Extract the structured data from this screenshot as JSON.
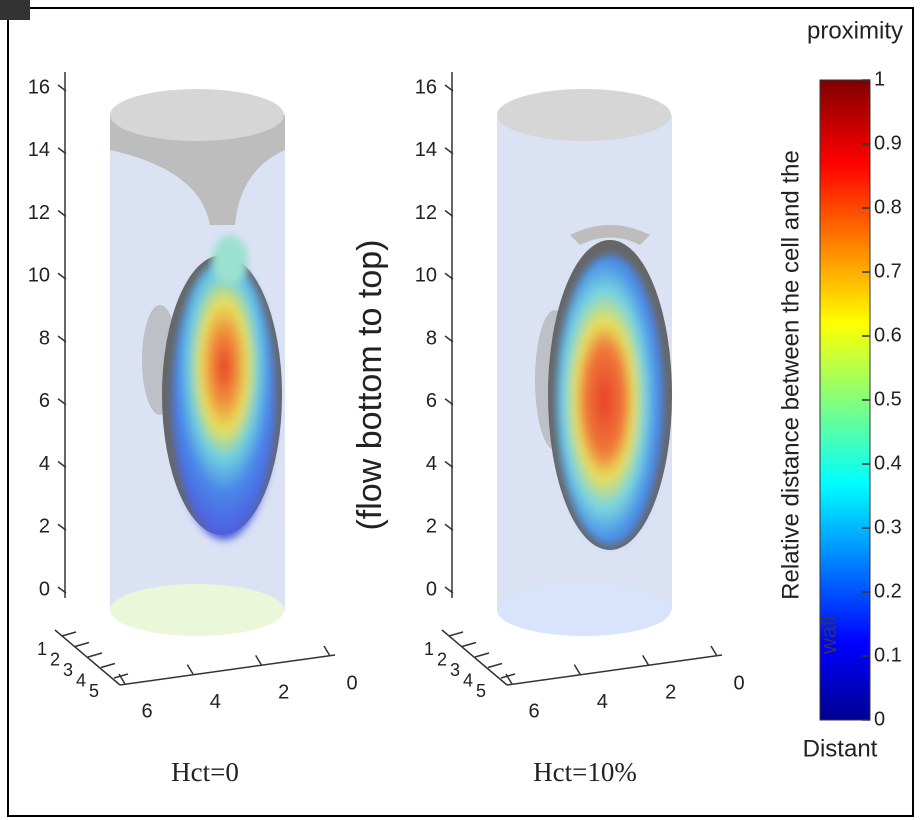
{
  "panels": [
    {
      "label": "Hct=0",
      "z_ticks": [
        0,
        2,
        4,
        6,
        8,
        10,
        12,
        14,
        16
      ],
      "x_ticks": [
        6,
        4,
        2,
        0
      ],
      "y_ticks": [
        1,
        2,
        3,
        4,
        5
      ]
    },
    {
      "label": "Hct=10%",
      "z_ticks": [
        0,
        2,
        4,
        6,
        8,
        10,
        12,
        14,
        16
      ],
      "x_ticks": [
        6,
        4,
        2,
        0
      ],
      "y_ticks": [
        1,
        2,
        3,
        4,
        5
      ]
    }
  ],
  "side_label": "(flow bottom to top)",
  "colorbar": {
    "top_label": "proximity",
    "title": "Relative distance between the cell and the",
    "wall_label": "wall",
    "bottom_label": "Distant",
    "ticks": [
      0,
      0.1,
      0.2,
      0.3,
      0.4,
      0.5,
      0.6,
      0.7,
      0.8,
      0.9,
      1
    ]
  }
}
